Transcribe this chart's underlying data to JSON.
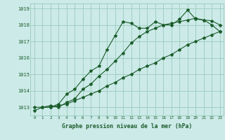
{
  "title": "Graphe pression niveau de la mer (hPa)",
  "background_color": "#cceae8",
  "grid_color": "#99ccbb",
  "line_color": "#1a5c2a",
  "xlim": [
    -0.5,
    23.5
  ],
  "ylim": [
    1012.5,
    1019.3
  ],
  "yticks": [
    1013,
    1014,
    1015,
    1016,
    1017,
    1018,
    1019
  ],
  "xticks": [
    0,
    1,
    2,
    3,
    4,
    5,
    6,
    7,
    8,
    9,
    10,
    11,
    12,
    13,
    14,
    15,
    16,
    17,
    18,
    19,
    20,
    21,
    22,
    23
  ],
  "line1_x": [
    0,
    1,
    2,
    3,
    4,
    5,
    6,
    7,
    8,
    9,
    10,
    11,
    12,
    13,
    14,
    15,
    16,
    17,
    18,
    19,
    20,
    21,
    22,
    23
  ],
  "line1_y": [
    1012.8,
    1013.0,
    1013.0,
    1013.2,
    1013.8,
    1014.1,
    1014.7,
    1015.2,
    1015.5,
    1016.5,
    1017.35,
    1018.2,
    1018.1,
    1017.8,
    1017.8,
    1018.2,
    1018.0,
    1018.0,
    1018.35,
    1018.9,
    1018.35,
    1018.3,
    1018.25,
    1018.0
  ],
  "line2_x": [
    1,
    2,
    3,
    4,
    5,
    6,
    7,
    8,
    9,
    10,
    11,
    12,
    13,
    14,
    15,
    16,
    17,
    18,
    19,
    20,
    21,
    22,
    23
  ],
  "line2_y": [
    1013.0,
    1013.1,
    1013.0,
    1013.3,
    1013.5,
    1014.1,
    1014.4,
    1014.9,
    1015.3,
    1015.8,
    1016.3,
    1016.9,
    1017.3,
    1017.6,
    1017.8,
    1018.0,
    1018.1,
    1018.2,
    1018.3,
    1018.4,
    1018.3,
    1018.0,
    1017.6
  ],
  "line3_x": [
    0,
    1,
    2,
    3,
    4,
    5,
    6,
    7,
    8,
    9,
    10,
    11,
    12,
    13,
    14,
    15,
    16,
    17,
    18,
    19,
    20,
    21,
    22,
    23
  ],
  "line3_y": [
    1013.0,
    1013.0,
    1013.0,
    1013.1,
    1013.2,
    1013.4,
    1013.6,
    1013.8,
    1014.0,
    1014.3,
    1014.5,
    1014.8,
    1015.0,
    1015.3,
    1015.5,
    1015.7,
    1016.0,
    1016.2,
    1016.5,
    1016.8,
    1017.0,
    1017.2,
    1017.4,
    1017.6
  ]
}
